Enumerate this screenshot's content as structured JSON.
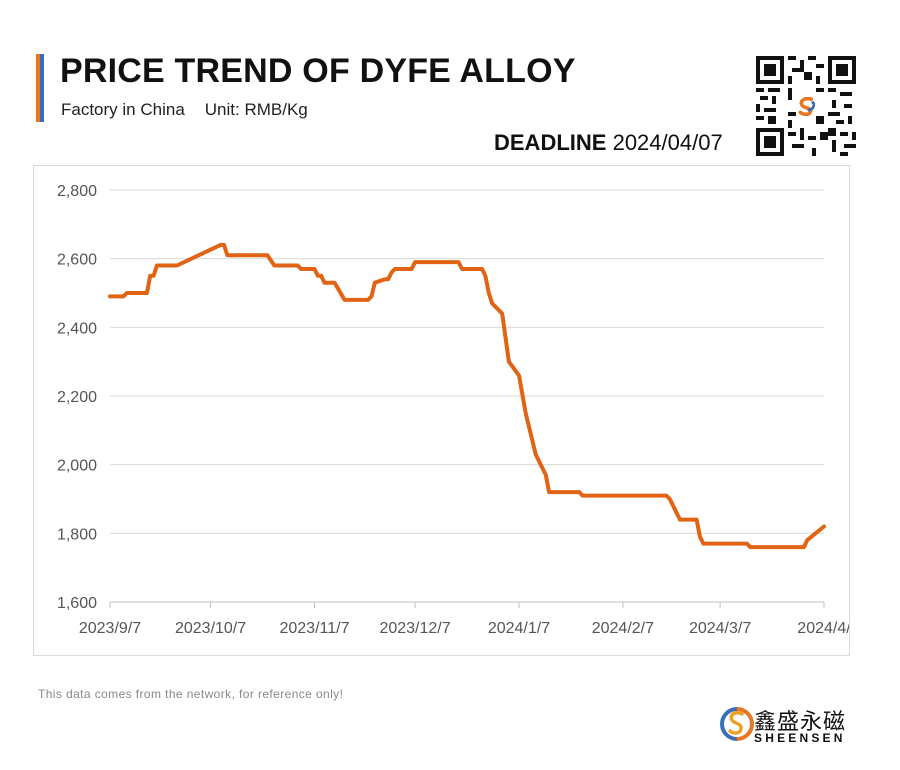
{
  "header": {
    "title": "PRICE TREND OF DYFE ALLOY",
    "subtitle_left": "Factory in China",
    "subtitle_right": "Unit: RMB/Kg",
    "deadline_label": "DEADLINE",
    "deadline_date": "2024/04/07",
    "accent_colors": [
      "#e87722",
      "#3a6fb8"
    ]
  },
  "footer": {
    "note": "This data comes from the network, for reference only!",
    "logo_cn": "鑫盛永磁",
    "logo_en": "SHEENSEN"
  },
  "chart_data": {
    "type": "line",
    "title": "PRICE TREND OF DYFE ALLOY",
    "xlabel": "",
    "ylabel": "",
    "ylim": [
      1600,
      2800
    ],
    "yticks": [
      1600,
      1800,
      2000,
      2200,
      2400,
      2600,
      2800
    ],
    "ytick_labels": [
      "1,600",
      "1,800",
      "2,000",
      "2,200",
      "2,400",
      "2,600",
      "2,800"
    ],
    "xlim": [
      "2023-09-07",
      "2024-04-07"
    ],
    "xtick_labels": [
      "2023/9/7",
      "2023/10/7",
      "2023/11/7",
      "2023/12/7",
      "2024/1/7",
      "2024/2/7",
      "2024/3/7",
      "2024/4/"
    ],
    "xtick_dates": [
      "2023-09-07",
      "2023-10-07",
      "2023-11-07",
      "2023-12-07",
      "2024-01-07",
      "2024-02-07",
      "2024-03-07",
      "2024-04-07"
    ],
    "grid": true,
    "line_color": "#e06414",
    "series": [
      {
        "points": [
          [
            "2023-09-07",
            2490
          ],
          [
            "2023-09-11",
            2490
          ],
          [
            "2023-09-12",
            2500
          ],
          [
            "2023-09-18",
            2500
          ],
          [
            "2023-09-19",
            2550
          ],
          [
            "2023-09-20",
            2550
          ],
          [
            "2023-09-21",
            2580
          ],
          [
            "2023-09-27",
            2580
          ],
          [
            "2023-10-10",
            2640
          ],
          [
            "2023-10-11",
            2640
          ],
          [
            "2023-10-12",
            2610
          ],
          [
            "2023-10-24",
            2610
          ],
          [
            "2023-10-26",
            2580
          ],
          [
            "2023-11-02",
            2580
          ],
          [
            "2023-11-03",
            2570
          ],
          [
            "2023-11-07",
            2570
          ],
          [
            "2023-11-08",
            2550
          ],
          [
            "2023-11-09",
            2550
          ],
          [
            "2023-11-10",
            2530
          ],
          [
            "2023-11-13",
            2530
          ],
          [
            "2023-11-16",
            2480
          ],
          [
            "2023-11-23",
            2480
          ],
          [
            "2023-11-24",
            2490
          ],
          [
            "2023-11-25",
            2530
          ],
          [
            "2023-11-28",
            2540
          ],
          [
            "2023-11-29",
            2540
          ],
          [
            "2023-11-30",
            2560
          ],
          [
            "2023-12-01",
            2570
          ],
          [
            "2023-12-06",
            2570
          ],
          [
            "2023-12-07",
            2590
          ],
          [
            "2023-12-20",
            2590
          ],
          [
            "2023-12-21",
            2570
          ],
          [
            "2023-12-27",
            2570
          ],
          [
            "2023-12-28",
            2550
          ],
          [
            "2023-12-29",
            2500
          ],
          [
            "2023-12-30",
            2470
          ],
          [
            "2024-01-02",
            2440
          ],
          [
            "2024-01-04",
            2300
          ],
          [
            "2024-01-07",
            2260
          ],
          [
            "2024-01-09",
            2150
          ],
          [
            "2024-01-12",
            2030
          ],
          [
            "2024-01-15",
            1970
          ],
          [
            "2024-01-16",
            1920
          ],
          [
            "2024-01-25",
            1920
          ],
          [
            "2024-01-26",
            1910
          ],
          [
            "2024-02-20",
            1910
          ],
          [
            "2024-02-21",
            1900
          ],
          [
            "2024-02-24",
            1840
          ],
          [
            "2024-02-29",
            1840
          ],
          [
            "2024-03-01",
            1790
          ],
          [
            "2024-03-02",
            1770
          ],
          [
            "2024-03-15",
            1770
          ],
          [
            "2024-03-16",
            1760
          ],
          [
            "2024-04-01",
            1760
          ],
          [
            "2024-04-02",
            1780
          ],
          [
            "2024-04-07",
            1820
          ]
        ]
      }
    ]
  }
}
